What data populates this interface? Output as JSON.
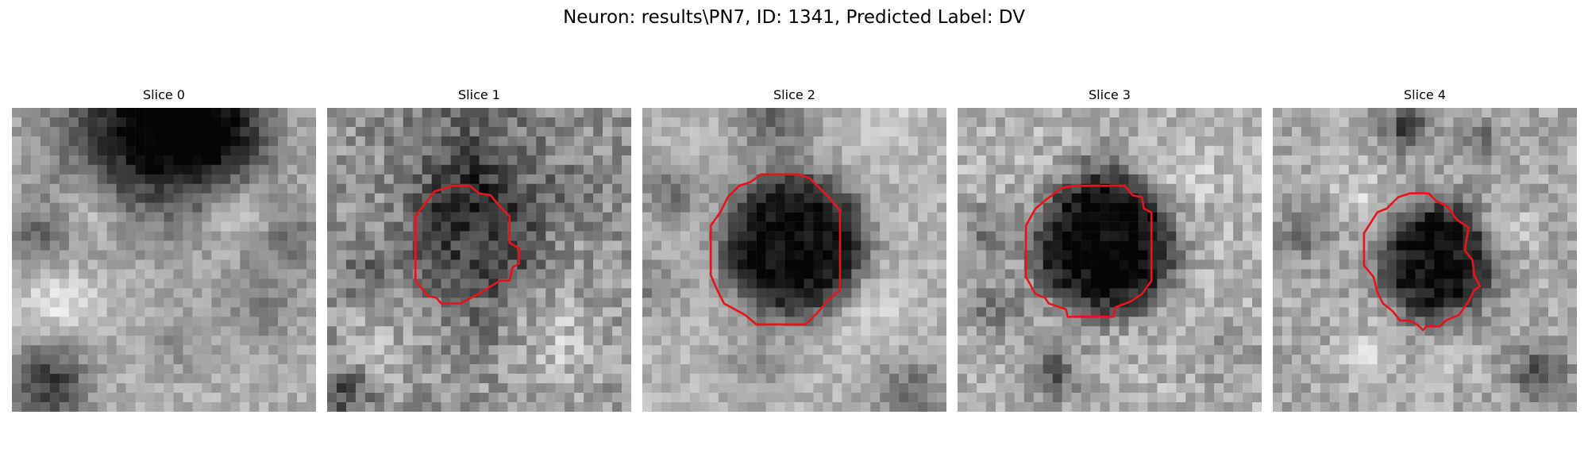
{
  "figure": {
    "title": "Neuron: results\\PN7, ID: 1341, Predicted Label: DV"
  },
  "panels": [
    {
      "title": "Slice 0",
      "has_contour": false
    },
    {
      "title": "Slice 1",
      "has_contour": true
    },
    {
      "title": "Slice 2",
      "has_contour": true
    },
    {
      "title": "Slice 3",
      "has_contour": true
    },
    {
      "title": "Slice 4",
      "has_contour": true
    }
  ],
  "colors": {
    "contour": "#e8141b",
    "background": "#ffffff"
  },
  "image": {
    "colormap": "gray",
    "grid_size": 32
  }
}
